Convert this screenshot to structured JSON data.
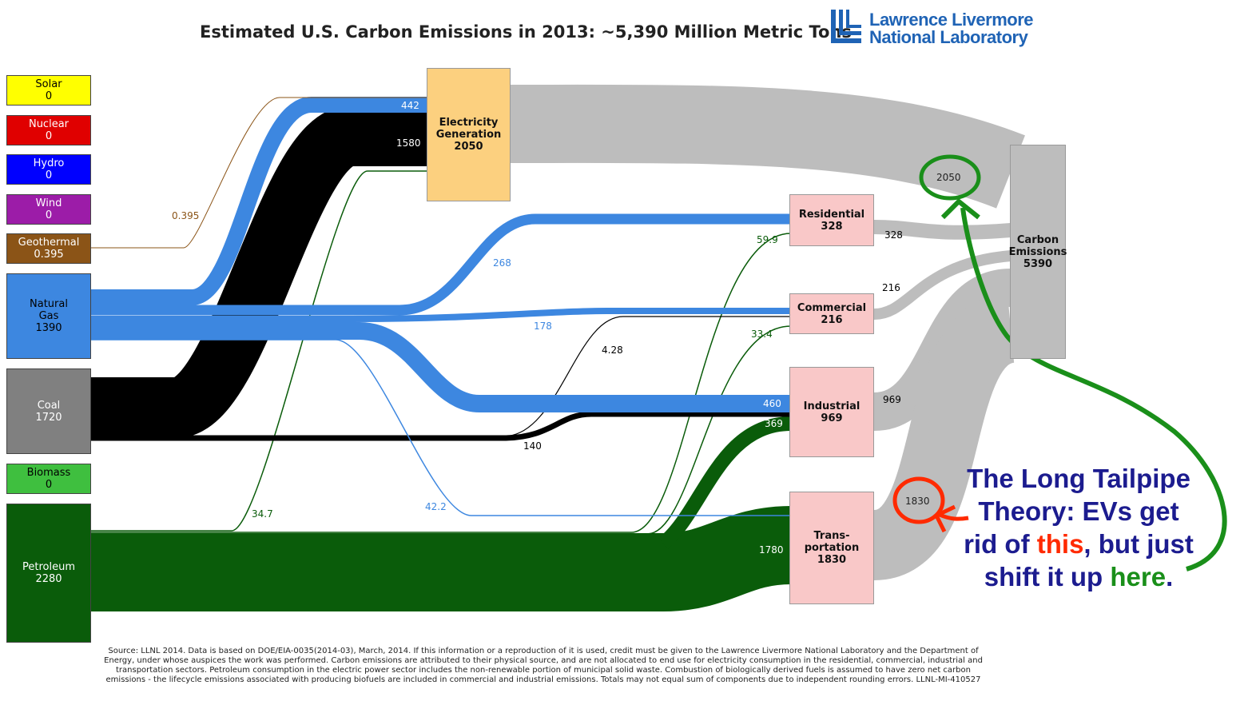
{
  "title": "Estimated U.S. Carbon Emissions in 2013: ~5,390 Million Metric Tons",
  "logo": {
    "line1": "Lawrence Livermore",
    "line2": "National Laboratory",
    "color": "#1f63b5"
  },
  "sources": [
    {
      "label": "Solar",
      "value": "0",
      "color": "#ffff00",
      "text": "#000000"
    },
    {
      "label": "Nuclear",
      "value": "0",
      "color": "#e00000",
      "text": "#ffffff"
    },
    {
      "label": "Hydro",
      "value": "0",
      "color": "#0000ff",
      "text": "#ffffff"
    },
    {
      "label": "Wind",
      "value": "0",
      "color": "#9c1ca8",
      "text": "#ffffff"
    },
    {
      "label": "Geothermal",
      "value": "0.395",
      "color": "#8b5417",
      "text": "#ffffff"
    },
    {
      "label": "Natural",
      "label2": "Gas",
      "value": "1390",
      "color": "#3d87e0",
      "text": "#000000"
    },
    {
      "label": "Coal",
      "value": "1720",
      "color": "#808080",
      "text": "#ffffff"
    },
    {
      "label": "Biomass",
      "value": "0",
      "color": "#3fbf3f",
      "text": "#000000"
    },
    {
      "label": "Petroleum",
      "value": "2280",
      "color": "#0a5c0a",
      "text": "#ffffff"
    }
  ],
  "nodes": {
    "electricity": {
      "label1": "Electricity",
      "label2": "Generation",
      "value": "2050"
    },
    "residential": {
      "label1": "Residential",
      "value": "328"
    },
    "commercial": {
      "label1": "Commercial",
      "value": "216"
    },
    "industrial": {
      "label1": "Industrial",
      "value": "969"
    },
    "transportation": {
      "label1": "Trans-",
      "label2": "portation",
      "value": "1830"
    },
    "emissions": {
      "label1": "Carbon",
      "label2": "Emissions",
      "value": "5390"
    }
  },
  "flow_labels": {
    "gas_elec": "442",
    "coal_elec": "1580",
    "geo_elec": "0.395",
    "gas_res": "268",
    "pet_res": "59.9",
    "gas_com": "178",
    "coal_com": "4.28",
    "pet_com": "33.4",
    "gas_ind": "460",
    "pet_ind": "369",
    "coal_ind": "140",
    "gas_trans": "42.2",
    "pet_elec": "34.7",
    "pet_trans": "1780",
    "res_em": "328",
    "com_em": "216",
    "ind_em": "969",
    "elec_em": "2050",
    "trans_em": "1830"
  },
  "annotation": {
    "line1": "The Long Tailpipe",
    "line2": "Theory: EVs get",
    "line3_a": "rid of ",
    "line3_b": "this",
    "line3_c": ", but just",
    "line4_a": "shift it up ",
    "line4_b": "here",
    "line4_c": ".",
    "red_color": "#ff2a00",
    "green_color": "#1a8f1a"
  },
  "source_note": "Source: LLNL 2014. Data is based on DOE/EIA-0035(2014-03), March, 2014. If this information or a reproduction of it is used, credit must be given to the Lawrence Livermore National Laboratory and the Department of Energy, under whose auspices the work was performed. Carbon emissions are attributed to their physical source, and are not allocated to end use for electricity consumption in the residential, commercial, industrial and transportation sectors. Petroleum consumption in the electric power sector includes the non-renewable portion of municipal solid waste. Combustion of biologically derived fuels is assumed to have zero net carbon emissions - the lifecycle emissions associated with producing biofuels are included in commercial and industrial emissions. Totals may not equal sum of components due to independent rounding errors. LLNL-MI-410527"
}
